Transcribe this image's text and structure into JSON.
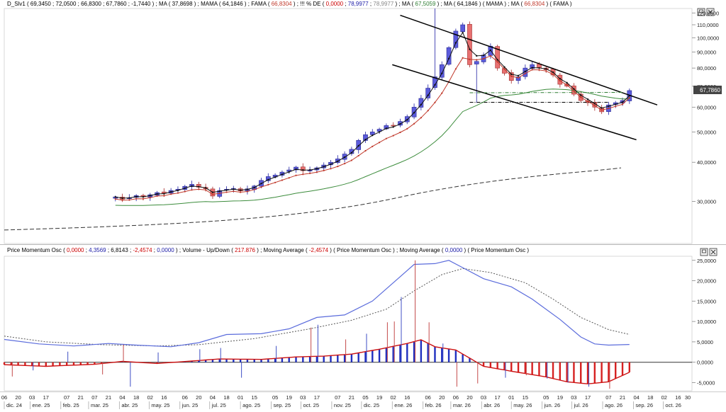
{
  "top_panel": {
    "legend": [
      {
        "text": "D_Slv1",
        "color": "#000000"
      },
      {
        "text": " ( 69,3450 ; 72,0500 ; 66,8300 ; 67,7860 ; -1,7440 ) ; ",
        "color": "#000000"
      },
      {
        "text": "MA",
        "color": "#000000"
      },
      {
        "text": " ( 37,8698 ) ; ",
        "color": "#000000"
      },
      {
        "text": "MAMA",
        "color": "#000000"
      },
      {
        "text": " ( 64,1846 ) ; ",
        "color": "#000000"
      },
      {
        "text": "FAMA",
        "color": "#000000"
      },
      {
        "text": " ( ",
        "color": "#000000"
      },
      {
        "text": "66,8304",
        "color": "#c0392b"
      },
      {
        "text": " ) ;  !!! % DE ( ",
        "color": "#000000"
      },
      {
        "text": "0,0000",
        "color": "#cc0000"
      },
      {
        "text": " ; ",
        "color": "#000000"
      },
      {
        "text": "78,9977",
        "color": "#1a1aa6"
      },
      {
        "text": " ; ",
        "color": "#000000"
      },
      {
        "text": "78,9977",
        "color": "#888888"
      },
      {
        "text": " ) ; MA ( ",
        "color": "#000000"
      },
      {
        "text": "67,5059",
        "color": "#2e7d32"
      },
      {
        "text": " ) ; MA ( 64,1846 ) ( MAMA ) ; MA ( ",
        "color": "#000000"
      },
      {
        "text": "66,8304",
        "color": "#c0392b"
      },
      {
        "text": " ) ( FAMA )",
        "color": "#000000"
      }
    ],
    "y_ticks": [
      "120,0000",
      "110,0000",
      "100,0000",
      "90,0000",
      "80,0000",
      "70,0000",
      "60,0000",
      "50,0000",
      "40,0000",
      "30,0000"
    ],
    "last_price_label": "67,7860"
  },
  "bottom_panel": {
    "legend": [
      {
        "text": "Price Momentum Osc",
        "color": "#000000"
      },
      {
        "text": " ( ",
        "color": "#000000"
      },
      {
        "text": "0,0000",
        "color": "#cc0000"
      },
      {
        "text": " ; ",
        "color": "#000000"
      },
      {
        "text": "4,3569",
        "color": "#1a1aa6"
      },
      {
        "text": " ; 6,8143 ; ",
        "color": "#000000"
      },
      {
        "text": "-2,4574",
        "color": "#cc0000"
      },
      {
        "text": " ; ",
        "color": "#000000"
      },
      {
        "text": "0,0000",
        "color": "#1a1aa6"
      },
      {
        "text": " ) ;  Volume - Up/Down ( ",
        "color": "#000000"
      },
      {
        "text": "217.876",
        "color": "#cc0000"
      },
      {
        "text": " ) ;  Moving Average ( ",
        "color": "#000000"
      },
      {
        "text": "-2,4574",
        "color": "#cc0000"
      },
      {
        "text": " ) ( Price Momentum Osc ) ;  Moving Average ( ",
        "color": "#000000"
      },
      {
        "text": "0,0000",
        "color": "#1a1aa6"
      },
      {
        "text": " ) ( Price Momentum Osc )",
        "color": "#000000"
      }
    ],
    "y_ticks": [
      "25,0000",
      "20,0000",
      "15,0000",
      "10,0000",
      "5,0000",
      "0,0000",
      "-5,0000"
    ]
  },
  "x_axis": {
    "day_labels": [
      "06",
      "20",
      "03",
      "17",
      "07",
      "21",
      "07",
      "21",
      "04",
      "18",
      "02",
      "16",
      "06",
      "20",
      "04",
      "18",
      "01",
      "15",
      "05",
      "19",
      "03",
      "17",
      "07",
      "21",
      "05",
      "19",
      "02",
      "16",
      "06",
      "20",
      "06",
      "20",
      "03",
      "17",
      "01",
      "15",
      "05",
      "19",
      "03",
      "17",
      "07",
      "21",
      "04",
      "18",
      "02",
      "16",
      "30"
    ],
    "month_labels": [
      "dic. 24",
      "ene. 25",
      "feb. 25",
      "mar. 25",
      "abr. 25",
      "may. 25",
      "jun. 25",
      "jul. 25",
      "ago. 25",
      "sep. 25",
      "oct. 25",
      "nov. 25",
      "dic. 25",
      "ene. 26",
      "feb. 26",
      "mar. 26",
      "abr. 26",
      "may. 26",
      "jun. 26",
      "jul. 26",
      "ago. 26",
      "sep. 26",
      "oct. 26"
    ]
  },
  "colors": {
    "up_candle": "#5b5bdc",
    "down_candle": "#e87070",
    "mama": "#111111",
    "fama": "#c0392b",
    "ma_green": "#3c8c3c",
    "ma_long": "#333333",
    "osc_line": "#5b6cdc",
    "osc_signal": "#555555",
    "hist_pos": "#1f2fbf",
    "hist_neg": "#d62020"
  },
  "chart_data": [
    {
      "type": "candlestick",
      "title": "D_Slv1",
      "y_scale": "log",
      "ylim": [
        22,
        124
      ],
      "x_range": [
        "2024-12-06",
        "2026-10-30"
      ],
      "weekly_close_estimates": [
        31,
        30.5,
        30.8,
        31.3,
        31.0,
        31.5,
        32,
        31.8,
        32.5,
        32.8,
        33.5,
        34,
        33.3,
        32.9,
        31.2,
        32.5,
        32.8,
        33.0,
        32.4,
        32.9,
        33.6,
        35,
        36,
        36.4,
        37.2,
        37.8,
        38.6,
        37.6,
        37.8,
        38.4,
        39.2,
        40,
        41,
        42.5,
        44,
        47,
        49,
        50,
        51,
        52.4,
        52.3,
        54,
        56,
        60,
        64,
        69,
        75,
        82,
        93,
        105,
        110,
        82,
        84,
        88,
        94,
        80,
        77,
        73,
        75,
        80,
        82,
        80,
        79,
        76,
        71,
        70,
        66,
        63,
        62,
        60,
        58,
        61,
        62,
        63,
        67.786
      ],
      "series": [
        {
          "name": "MAMA",
          "value_last": 64.1846
        },
        {
          "name": "FAMA",
          "value_last": 66.8304
        },
        {
          "name": "MA",
          "value_last": 67.5059
        },
        {
          "name": "MA",
          "value_last": 37.8698
        }
      ]
    },
    {
      "type": "line",
      "title": "Price Momentum Osc",
      "ylim": [
        -7,
        26
      ],
      "series": [
        {
          "name": "Price Momentum Osc",
          "last": 4.3569
        },
        {
          "name": "Moving Average",
          "last": 6.8143
        },
        {
          "name": "Volume - Up/Down",
          "last": 217876
        },
        {
          "name": "Moving Average",
          "last": -2.4574
        }
      ]
    }
  ]
}
